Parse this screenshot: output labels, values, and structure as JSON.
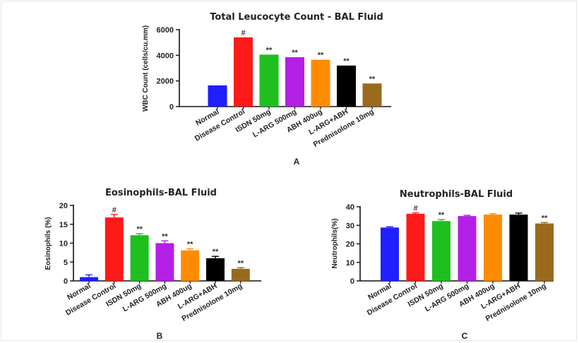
{
  "chart_data": [
    {
      "type": "bar",
      "title": "Total Leucocyte Count - BAL  Fluid",
      "ylabel": "WBC Count (cells/cu.mm)",
      "ylim": [
        0,
        6000
      ],
      "yticks": [
        0,
        2000,
        4000,
        6000
      ],
      "categories": [
        "Normal",
        "Disease Control",
        "ISDN 50mg",
        "L-ARG 500mg",
        "ABH 400ug",
        "L-ARG+ABH",
        "Prednisolone 10mg"
      ],
      "values": [
        1650,
        5400,
        4050,
        3850,
        3650,
        3200,
        1800
      ],
      "errors": [
        0,
        0,
        0,
        0,
        0,
        0,
        0
      ],
      "colors": [
        "#1f1fff",
        "#ff1a1a",
        "#1fbf1f",
        "#b41fe6",
        "#ff8c00",
        "#000000",
        "#9a6a1c"
      ],
      "annotations": [
        "",
        "#",
        "**",
        "**",
        "**",
        "**",
        "**"
      ],
      "panel_label": "A"
    },
    {
      "type": "bar",
      "title": "Eosinophils-BAL Fluid",
      "ylabel": "Eosinophils (%)",
      "ylim": [
        0,
        20
      ],
      "yticks": [
        0,
        5,
        10,
        15,
        20
      ],
      "categories": [
        "Normal",
        "Disease Control",
        "ISDN 50mg",
        "L-ARG 500mg",
        "ABH 400ug",
        "L-ARG+ABH",
        "Prednisolone 10mg"
      ],
      "values": [
        1,
        16.8,
        12.1,
        10.0,
        8.1,
        6.0,
        3.2
      ],
      "errors": [
        0.6,
        0.8,
        0.4,
        0.6,
        0.4,
        0.5,
        0.3
      ],
      "colors": [
        "#1f1fff",
        "#ff1a1a",
        "#1fbf1f",
        "#b41fe6",
        "#ff8c00",
        "#000000",
        "#9a6a1c"
      ],
      "annotations": [
        "",
        "#",
        "**",
        "**",
        "**",
        "**",
        "**"
      ],
      "panel_label": "B"
    },
    {
      "type": "bar",
      "title": "Neutrophils-BAL Fluid",
      "ylabel": "Neutrophils(%)",
      "ylim": [
        0,
        40
      ],
      "yticks": [
        0,
        10,
        20,
        30,
        40
      ],
      "categories": [
        "Normal",
        "Disease Control",
        "ISDN 50mg",
        "L-ARG 500mg",
        "ABH 400ug",
        "L-ARG+ABH",
        "Prednisolone 10mg"
      ],
      "values": [
        28.8,
        36.2,
        32.3,
        35.0,
        35.8,
        35.8,
        31.0
      ],
      "errors": [
        0.4,
        0.5,
        0.8,
        0.4,
        0.5,
        0.8,
        0.5
      ],
      "colors": [
        "#1f1fff",
        "#ff1a1a",
        "#1fbf1f",
        "#b41fe6",
        "#ff8c00",
        "#000000",
        "#9a6a1c"
      ],
      "annotations": [
        "",
        "#",
        "**",
        "",
        "",
        "",
        "**"
      ],
      "panel_label": "C"
    }
  ]
}
